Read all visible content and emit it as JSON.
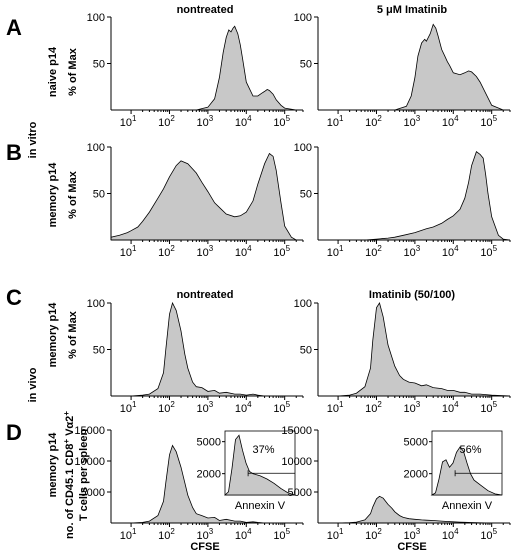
{
  "labels": {
    "panel_a": "A",
    "panel_b": "B",
    "panel_c": "C",
    "panel_d": "D",
    "in_vitro": "in vitro",
    "in_vivo": "in vivo",
    "naive_p14": "naive p14",
    "memory_p14": "memory p14",
    "pct_of_max": "% of Max",
    "count_label_line1": "no. of CD45.1 CD8",
    "count_label_sup1": "+",
    "count_label_mid": " Vα2",
    "count_label_sup2": "+",
    "count_label_line2": "T cells per spleen",
    "nontreated": "nontreated",
    "imatinib_5um": "5 μM Imatinib",
    "imatinib_50_100": "Imatinib (50/100)",
    "cfse": "CFSE",
    "annexin": "Annexin V"
  },
  "chart_data": [
    {
      "id": "A-left",
      "type": "area",
      "title": "nontreated",
      "row_label": "naive p14",
      "ylabel": "% of Max",
      "xscale": "log",
      "xlim": [
        3,
        300000
      ],
      "ylim": [
        0,
        100
      ],
      "xticks": [
        "10^1",
        "10^2",
        "10^3",
        "10^4",
        "10^5"
      ],
      "yticks": [
        50,
        100
      ],
      "x": [
        3,
        10,
        100,
        500,
        1000,
        1500,
        2000,
        2500,
        3000,
        3500,
        4000,
        4500,
        5000,
        6000,
        7000,
        8000,
        10000,
        15000,
        20000,
        25000,
        30000,
        35000,
        40000,
        50000,
        60000,
        80000,
        100000,
        200000,
        300000
      ],
      "y": [
        0,
        0,
        0,
        0,
        3,
        12,
        35,
        62,
        78,
        86,
        84,
        88,
        90,
        82,
        70,
        55,
        30,
        15,
        15,
        18,
        20,
        22,
        21,
        17,
        11,
        5,
        2,
        0,
        0
      ]
    },
    {
      "id": "A-right",
      "type": "area",
      "title": "5 μM Imatinib",
      "ylabel": "% of Max",
      "xscale": "log",
      "xlim": [
        3,
        300000
      ],
      "ylim": [
        0,
        100
      ],
      "xticks": [
        "10^1",
        "10^2",
        "10^3",
        "10^4",
        "10^5"
      ],
      "yticks": [
        50,
        100
      ],
      "x": [
        3,
        10,
        100,
        300,
        600,
        800,
        1000,
        1200,
        1500,
        1800,
        2000,
        2500,
        3000,
        3500,
        4000,
        5000,
        6000,
        7000,
        8000,
        10000,
        15000,
        20000,
        25000,
        30000,
        40000,
        50000,
        70000,
        100000,
        200000,
        300000
      ],
      "y": [
        0,
        0,
        0,
        0,
        4,
        15,
        35,
        58,
        72,
        76,
        74,
        82,
        92,
        88,
        80,
        65,
        58,
        52,
        48,
        40,
        38,
        40,
        42,
        41,
        36,
        30,
        18,
        5,
        0,
        0
      ]
    },
    {
      "id": "B-left",
      "type": "area",
      "ylabel": "% of Max",
      "row_label": "memory p14",
      "xscale": "log",
      "xlim": [
        3,
        300000
      ],
      "ylim": [
        0,
        100
      ],
      "xticks": [
        "10^1",
        "10^2",
        "10^3",
        "10^4",
        "10^5"
      ],
      "yticks": [
        50,
        100
      ],
      "x": [
        3,
        5,
        8,
        10,
        15,
        20,
        30,
        50,
        70,
        100,
        150,
        200,
        300,
        500,
        700,
        1000,
        1500,
        2000,
        3000,
        5000,
        7000,
        10000,
        15000,
        20000,
        30000,
        40000,
        50000,
        60000,
        80000,
        100000,
        150000,
        200000,
        300000
      ],
      "y": [
        3,
        5,
        8,
        10,
        14,
        20,
        30,
        45,
        55,
        68,
        80,
        85,
        82,
        72,
        62,
        52,
        40,
        35,
        28,
        25,
        26,
        30,
        42,
        60,
        82,
        93,
        90,
        75,
        40,
        15,
        3,
        0,
        0
      ]
    },
    {
      "id": "B-right",
      "type": "area",
      "ylabel": "% of Max",
      "xscale": "log",
      "xlim": [
        3,
        300000
      ],
      "ylim": [
        0,
        100
      ],
      "xticks": [
        "10^1",
        "10^2",
        "10^3",
        "10^4",
        "10^5"
      ],
      "yticks": [
        50,
        100
      ],
      "x": [
        3,
        10,
        50,
        100,
        200,
        300,
        500,
        1000,
        2000,
        3000,
        5000,
        7000,
        10000,
        15000,
        20000,
        25000,
        30000,
        40000,
        50000,
        60000,
        70000,
        80000,
        100000,
        150000,
        200000,
        300000
      ],
      "y": [
        0,
        0,
        0,
        1,
        2,
        3,
        5,
        8,
        12,
        14,
        18,
        22,
        26,
        33,
        45,
        62,
        80,
        95,
        92,
        88,
        70,
        50,
        25,
        5,
        1,
        0
      ]
    },
    {
      "id": "C-left",
      "type": "area",
      "title": "nontreated",
      "row_label": "memory p14",
      "ylabel": "% of Max",
      "xscale": "log",
      "xlim": [
        3,
        300000
      ],
      "ylim": [
        0,
        100
      ],
      "xticks": [
        "10^1",
        "10^2",
        "10^3",
        "10^4",
        "10^5"
      ],
      "yticks": [
        50,
        100
      ],
      "x": [
        3,
        10,
        20,
        30,
        50,
        70,
        80,
        100,
        120,
        150,
        200,
        250,
        300,
        400,
        500,
        700,
        1000,
        1500,
        2000,
        3000,
        5000,
        7000,
        10000,
        15000,
        20000,
        30000,
        50000,
        100000,
        300000
      ],
      "y": [
        0,
        0,
        1,
        2,
        8,
        25,
        50,
        88,
        100,
        92,
        70,
        45,
        30,
        15,
        10,
        9,
        5,
        6,
        3,
        4,
        2,
        2,
        1,
        2,
        1,
        0,
        0,
        0,
        0
      ]
    },
    {
      "id": "C-right",
      "type": "area",
      "title": "Imatinib (50/100)",
      "ylabel": "% of Max",
      "xscale": "log",
      "xlim": [
        3,
        300000
      ],
      "ylim": [
        0,
        100
      ],
      "xticks": [
        "10^1",
        "10^2",
        "10^3",
        "10^4",
        "10^5"
      ],
      "yticks": [
        50,
        100
      ],
      "x": [
        3,
        10,
        20,
        30,
        50,
        70,
        80,
        100,
        120,
        150,
        200,
        250,
        300,
        400,
        500,
        700,
        1000,
        1500,
        2000,
        3000,
        5000,
        7000,
        10000,
        15000,
        20000,
        30000,
        50000,
        100000,
        300000
      ],
      "y": [
        0,
        0,
        1,
        3,
        10,
        30,
        60,
        95,
        100,
        85,
        55,
        42,
        32,
        22,
        18,
        15,
        14,
        11,
        12,
        9,
        8,
        6,
        6,
        4,
        4,
        2,
        2,
        1,
        0
      ]
    },
    {
      "id": "D-left",
      "type": "area",
      "row_label": "memory p14",
      "ylabel": "no. of CD45.1 CD8+ Vα2+ T cells per spleen",
      "xlabel": "CFSE",
      "xscale": "log",
      "xlim": [
        3,
        300000
      ],
      "ylim": [
        0,
        15000
      ],
      "xticks": [
        "10^1",
        "10^2",
        "10^3",
        "10^4",
        "10^5"
      ],
      "yticks": [
        5000,
        10000,
        15000
      ],
      "x": [
        3,
        10,
        20,
        30,
        50,
        70,
        80,
        100,
        120,
        150,
        200,
        250,
        300,
        400,
        500,
        700,
        1000,
        1500,
        2000,
        3000,
        5000,
        7000,
        10000,
        15000,
        20000,
        30000,
        50000,
        100000,
        300000
      ],
      "y": [
        0,
        0,
        100,
        300,
        1200,
        3500,
        6500,
        11000,
        12500,
        11500,
        9000,
        6500,
        4500,
        2500,
        1500,
        1200,
        800,
        900,
        400,
        600,
        300,
        300,
        100,
        200,
        100,
        0,
        0,
        0,
        0
      ],
      "inset": {
        "label": "37%",
        "xlabel": "Annexin V",
        "yticks": [
          2000,
          5000
        ],
        "ylim": [
          0,
          6000
        ],
        "x": [
          0,
          0.05,
          0.1,
          0.15,
          0.2,
          0.25,
          0.3,
          0.35,
          0.4,
          0.45,
          0.5,
          0.6,
          0.7,
          0.8,
          0.9,
          1
        ],
        "y": [
          0,
          300,
          2500,
          5200,
          5600,
          4200,
          3000,
          2200,
          2000,
          1900,
          1800,
          1500,
          1100,
          600,
          200,
          0
        ]
      }
    },
    {
      "id": "D-right",
      "type": "area",
      "xlabel": "CFSE",
      "xscale": "log",
      "xlim": [
        3,
        300000
      ],
      "ylim": [
        0,
        15000
      ],
      "xticks": [
        "10^1",
        "10^2",
        "10^3",
        "10^4",
        "10^5"
      ],
      "yticks": [
        5000,
        10000,
        15000
      ],
      "x": [
        3,
        10,
        20,
        30,
        50,
        70,
        80,
        100,
        120,
        150,
        200,
        250,
        300,
        400,
        500,
        700,
        1000,
        1500,
        2000,
        3000,
        5000,
        7000,
        10000,
        15000,
        20000,
        30000,
        50000,
        100000,
        300000
      ],
      "y": [
        0,
        0,
        50,
        150,
        500,
        1500,
        2600,
        3900,
        4300,
        4000,
        3000,
        2400,
        1800,
        1200,
        900,
        700,
        600,
        500,
        450,
        400,
        300,
        250,
        200,
        150,
        120,
        80,
        40,
        0,
        0
      ],
      "inset": {
        "label": "56%",
        "xlabel": "Annexin V",
        "yticks": [
          2000,
          5000
        ],
        "ylim": [
          0,
          6000
        ],
        "x": [
          0,
          0.05,
          0.1,
          0.15,
          0.2,
          0.25,
          0.3,
          0.35,
          0.4,
          0.45,
          0.5,
          0.55,
          0.6,
          0.7,
          0.8,
          0.9,
          1
        ],
        "y": [
          0,
          200,
          1500,
          3100,
          3300,
          2600,
          3000,
          4000,
          4500,
          4100,
          3000,
          2000,
          1400,
          900,
          400,
          100,
          0
        ]
      }
    }
  ]
}
